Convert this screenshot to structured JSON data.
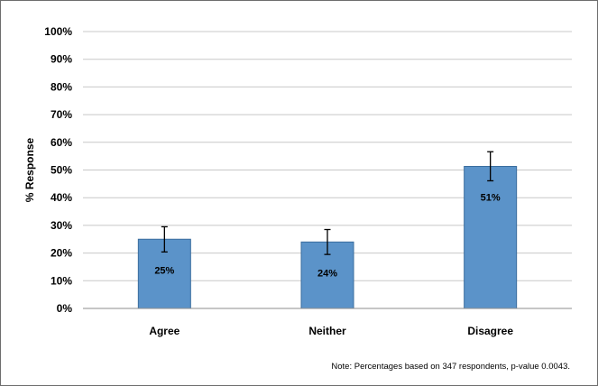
{
  "chart_data": {
    "type": "bar",
    "title": "",
    "xlabel": "",
    "ylabel": "% Response",
    "ylim": [
      0,
      100
    ],
    "yticks": [
      0,
      10,
      20,
      30,
      40,
      50,
      60,
      70,
      80,
      90,
      100
    ],
    "ytick_labels": [
      "0%",
      "10%",
      "20%",
      "30%",
      "40%",
      "50%",
      "60%",
      "70%",
      "80%",
      "90%",
      "100%"
    ],
    "categories": [
      "Agree",
      "Neither",
      "Disagree"
    ],
    "values": [
      25,
      24,
      51.3
    ],
    "data_labels": [
      "25%",
      "24%",
      "51%"
    ],
    "error_bars": [
      {
        "low": 20.4,
        "high": 29.5
      },
      {
        "low": 19.5,
        "high": 28.5
      },
      {
        "low": 46.1,
        "high": 56.6
      }
    ],
    "grid": true,
    "legend": "none",
    "colors": {
      "bar_fill": "#5b93c9",
      "bar_stroke": "#3a6d9e",
      "grid": "#c8c8c8",
      "axis": "#8c8c8c",
      "error_bar": "#000000"
    },
    "note": "Note: Percentages based on 347 respondents, p-value 0.0043."
  }
}
